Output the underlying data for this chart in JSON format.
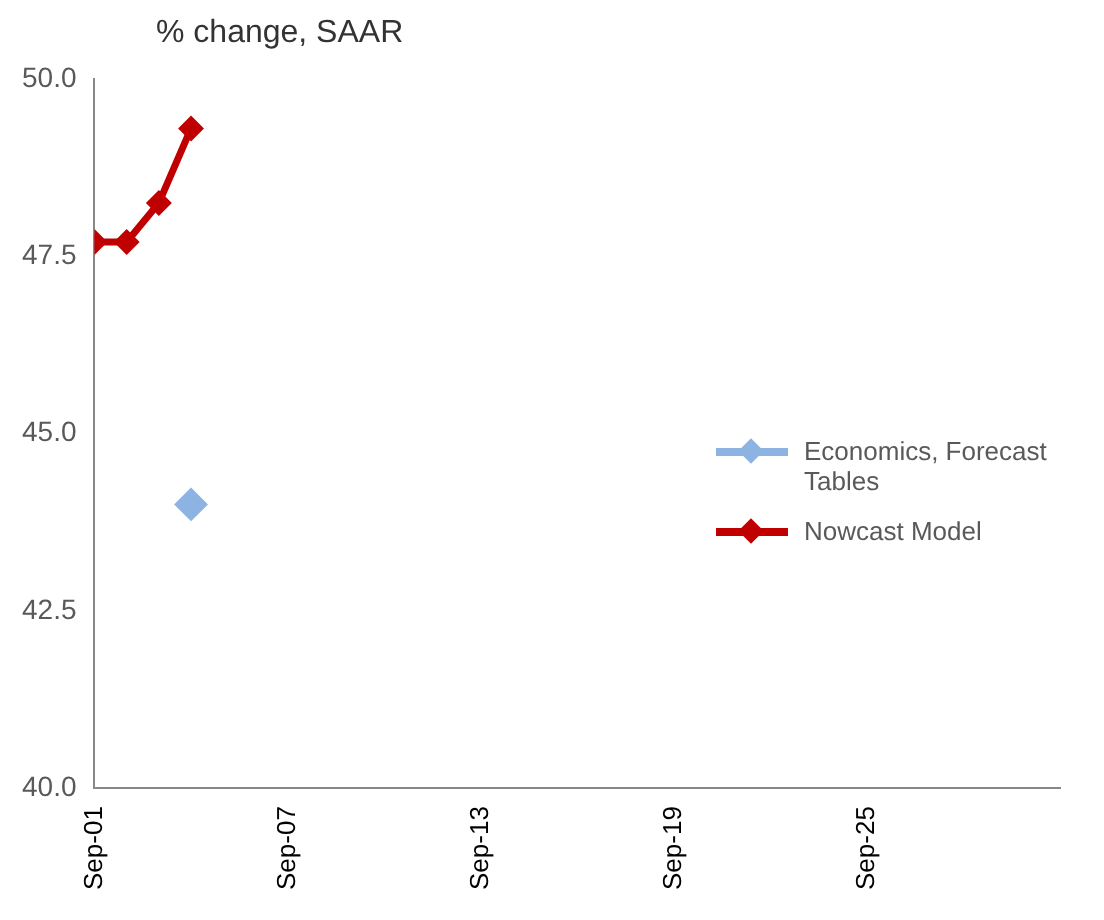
{
  "chart_data": {
    "type": "line",
    "ylabel": "% change, SAAR",
    "xlim": [
      "--09-01",
      "--10-01"
    ],
    "xticks": [
      {
        "value": "--09-01",
        "label": "Sep-01"
      },
      {
        "value": "--09-07",
        "label": "Sep-07"
      },
      {
        "value": "--09-13",
        "label": "Sep-13"
      },
      {
        "value": "--09-19",
        "label": "Sep-19"
      },
      {
        "value": "--09-25",
        "label": "Sep-25"
      }
    ],
    "ylim": [
      40,
      50
    ],
    "yticks": [
      {
        "value": 40,
        "label": "40.0"
      },
      {
        "value": 42.5,
        "label": "42.5"
      },
      {
        "value": 45,
        "label": "45.0"
      },
      {
        "value": 47.5,
        "label": "47.5"
      },
      {
        "value": 50,
        "label": "50.0"
      }
    ],
    "series": [
      {
        "name": "Economics, Forecast Tables",
        "color": "#8db3e2",
        "x": [
          "--09-04"
        ],
        "values": [
          44.0
        ]
      },
      {
        "name": "Nowcast Model",
        "color": "#c00000",
        "x": [
          "--09-01",
          "--09-02",
          "--09-03",
          "--09-04"
        ],
        "values": [
          47.7,
          47.7,
          48.25,
          49.3
        ]
      }
    ],
    "marker": "diamond",
    "line_style": "solid",
    "grid": false,
    "legend": "right"
  }
}
